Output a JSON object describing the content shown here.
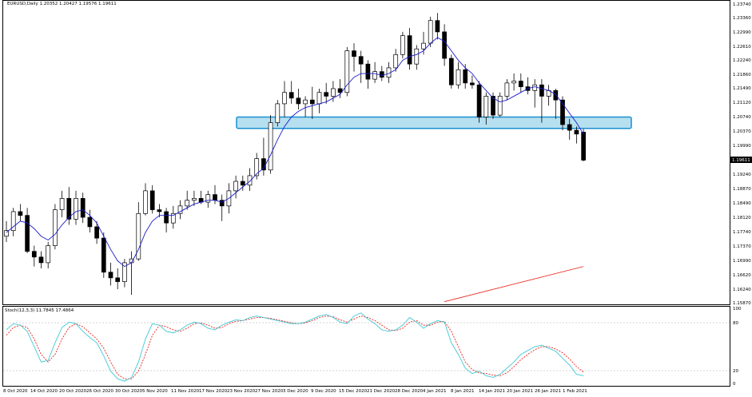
{
  "main_panel": {
    "title_text": "EURUSD,Daily  1.20352 1.20427 1.19576 1.19611",
    "price_labels": [
      "1.23740",
      "1.23360",
      "1.22990",
      "1.22610",
      "1.22240",
      "1.21860",
      "1.21490",
      "1.21120",
      "1.20740",
      "1.20370",
      "1.19990",
      "1.19611",
      "1.19240",
      "1.18870",
      "1.18490",
      "1.18120",
      "1.17740",
      "1.17370",
      "1.16990",
      "1.16620",
      "1.16240",
      "1.15870"
    ],
    "current_price": "1.19611"
  },
  "stoch_panel": {
    "title_text": "Stoch(12,3,3) 11.7845 17.4864",
    "levels": [
      "100",
      "80",
      "20",
      "0"
    ]
  },
  "time_axis": {
    "labels": [
      "8 Oct 2020",
      "14 Oct 2020",
      "20 Oct 2020",
      "26 Oct 2020",
      "30 Oct 2020",
      "5 Nov 2020",
      "11 Nov 2020",
      "17 Nov 2020",
      "23 Nov 2020",
      "27 Nov 2020",
      "3 Dec 2020",
      "9 Dec 2020",
      "15 Dec 2020",
      "21 Dec 2020",
      "28 Dec 2020",
      "4 Jan 2021",
      "8 Jan 2021",
      "14 Jan 2021",
      "20 Jan 2021",
      "26 Jan 2021",
      "1 Feb 2021"
    ]
  },
  "colors": {
    "zone_fill": "#a9d9ec",
    "zone_stroke": "#1a8fd0",
    "ma_line": "#1c1ccc",
    "trend_line": "#e8261e",
    "stoch_main": "#3fc9d6",
    "stoch_signal": "#e8261e",
    "bull_fill": "#ffffff",
    "bear_fill": "#000000"
  },
  "chart_data": {
    "type": "candlestick",
    "candles": [
      {
        "o": 1.176,
        "h": 1.18,
        "l": 1.1745,
        "c": 1.1775
      },
      {
        "o": 1.1775,
        "h": 1.1835,
        "l": 1.176,
        "c": 1.1825
      },
      {
        "o": 1.1825,
        "h": 1.1845,
        "l": 1.18,
        "c": 1.1815
      },
      {
        "o": 1.1815,
        "h": 1.1835,
        "l": 1.1715,
        "c": 1.172
      },
      {
        "o": 1.172,
        "h": 1.1735,
        "l": 1.168,
        "c": 1.1705
      },
      {
        "o": 1.1705,
        "h": 1.172,
        "l": 1.1675,
        "c": 1.169
      },
      {
        "o": 1.169,
        "h": 1.1745,
        "l": 1.1675,
        "c": 1.1735
      },
      {
        "o": 1.1735,
        "h": 1.1845,
        "l": 1.1725,
        "c": 1.183
      },
      {
        "o": 1.183,
        "h": 1.188,
        "l": 1.181,
        "c": 1.186
      },
      {
        "o": 1.186,
        "h": 1.189,
        "l": 1.179,
        "c": 1.1805
      },
      {
        "o": 1.1805,
        "h": 1.188,
        "l": 1.179,
        "c": 1.186
      },
      {
        "o": 1.186,
        "h": 1.1875,
        "l": 1.1795,
        "c": 1.181
      },
      {
        "o": 1.181,
        "h": 1.183,
        "l": 1.177,
        "c": 1.1785
      },
      {
        "o": 1.1785,
        "h": 1.18,
        "l": 1.174,
        "c": 1.1755
      },
      {
        "o": 1.1755,
        "h": 1.177,
        "l": 1.165,
        "c": 1.1665
      },
      {
        "o": 1.1665,
        "h": 1.169,
        "l": 1.163,
        "c": 1.165
      },
      {
        "o": 1.165,
        "h": 1.1675,
        "l": 1.162,
        "c": 1.164
      },
      {
        "o": 1.164,
        "h": 1.17,
        "l": 1.1625,
        "c": 1.169
      },
      {
        "o": 1.169,
        "h": 1.172,
        "l": 1.1605,
        "c": 1.17
      },
      {
        "o": 1.17,
        "h": 1.185,
        "l": 1.1695,
        "c": 1.182
      },
      {
        "o": 1.182,
        "h": 1.19,
        "l": 1.1815,
        "c": 1.188
      },
      {
        "o": 1.188,
        "h": 1.1895,
        "l": 1.182,
        "c": 1.183
      },
      {
        "o": 1.183,
        "h": 1.1845,
        "l": 1.181,
        "c": 1.1825
      },
      {
        "o": 1.1825,
        "h": 1.1835,
        "l": 1.177,
        "c": 1.1795
      },
      {
        "o": 1.1795,
        "h": 1.184,
        "l": 1.178,
        "c": 1.182
      },
      {
        "o": 1.182,
        "h": 1.1855,
        "l": 1.1805,
        "c": 1.184
      },
      {
        "o": 1.184,
        "h": 1.188,
        "l": 1.183,
        "c": 1.1855
      },
      {
        "o": 1.1855,
        "h": 1.188,
        "l": 1.184,
        "c": 1.186
      },
      {
        "o": 1.186,
        "h": 1.188,
        "l": 1.1845,
        "c": 1.185
      },
      {
        "o": 1.185,
        "h": 1.188,
        "l": 1.1835,
        "c": 1.187
      },
      {
        "o": 1.187,
        "h": 1.1895,
        "l": 1.1845,
        "c": 1.1855
      },
      {
        "o": 1.1855,
        "h": 1.187,
        "l": 1.18,
        "c": 1.184
      },
      {
        "o": 1.184,
        "h": 1.19,
        "l": 1.182,
        "c": 1.188
      },
      {
        "o": 1.188,
        "h": 1.192,
        "l": 1.186,
        "c": 1.1905
      },
      {
        "o": 1.1905,
        "h": 1.192,
        "l": 1.188,
        "c": 1.1895
      },
      {
        "o": 1.1895,
        "h": 1.194,
        "l": 1.188,
        "c": 1.192
      },
      {
        "o": 1.192,
        "h": 1.198,
        "l": 1.191,
        "c": 1.1965
      },
      {
        "o": 1.1965,
        "h": 1.202,
        "l": 1.192,
        "c": 1.1935
      },
      {
        "o": 1.1935,
        "h": 1.208,
        "l": 1.1925,
        "c": 1.206
      },
      {
        "o": 1.206,
        "h": 1.212,
        "l": 1.205,
        "c": 1.211
      },
      {
        "o": 1.211,
        "h": 1.217,
        "l": 1.2075,
        "c": 1.214
      },
      {
        "o": 1.214,
        "h": 1.217,
        "l": 1.211,
        "c": 1.2125
      },
      {
        "o": 1.2125,
        "h": 1.215,
        "l": 1.2095,
        "c": 1.211
      },
      {
        "o": 1.211,
        "h": 1.213,
        "l": 1.2075,
        "c": 1.212
      },
      {
        "o": 1.212,
        "h": 1.2155,
        "l": 1.207,
        "c": 1.211
      },
      {
        "o": 1.211,
        "h": 1.215,
        "l": 1.2085,
        "c": 1.214
      },
      {
        "o": 1.214,
        "h": 1.2165,
        "l": 1.211,
        "c": 1.213
      },
      {
        "o": 1.213,
        "h": 1.217,
        "l": 1.2115,
        "c": 1.215
      },
      {
        "o": 1.215,
        "h": 1.2175,
        "l": 1.2125,
        "c": 1.214
      },
      {
        "o": 1.214,
        "h": 1.226,
        "l": 1.213,
        "c": 1.225
      },
      {
        "o": 1.225,
        "h": 1.227,
        "l": 1.2195,
        "c": 1.2235
      },
      {
        "o": 1.2235,
        "h": 1.225,
        "l": 1.2165,
        "c": 1.2215
      },
      {
        "o": 1.2215,
        "h": 1.2225,
        "l": 1.215,
        "c": 1.2175
      },
      {
        "o": 1.2175,
        "h": 1.222,
        "l": 1.2165,
        "c": 1.2195
      },
      {
        "o": 1.2195,
        "h": 1.221,
        "l": 1.217,
        "c": 1.218
      },
      {
        "o": 1.218,
        "h": 1.222,
        "l": 1.2165,
        "c": 1.2205
      },
      {
        "o": 1.2205,
        "h": 1.2255,
        "l": 1.2195,
        "c": 1.224
      },
      {
        "o": 1.224,
        "h": 1.23,
        "l": 1.223,
        "c": 1.229
      },
      {
        "o": 1.229,
        "h": 1.231,
        "l": 1.22,
        "c": 1.2215
      },
      {
        "o": 1.2215,
        "h": 1.2265,
        "l": 1.22,
        "c": 1.2255
      },
      {
        "o": 1.2255,
        "h": 1.23,
        "l": 1.224,
        "c": 1.227
      },
      {
        "o": 1.227,
        "h": 1.234,
        "l": 1.226,
        "c": 1.233
      },
      {
        "o": 1.233,
        "h": 1.235,
        "l": 1.228,
        "c": 1.23
      },
      {
        "o": 1.23,
        "h": 1.232,
        "l": 1.221,
        "c": 1.223
      },
      {
        "o": 1.223,
        "h": 1.224,
        "l": 1.215,
        "c": 1.216
      },
      {
        "o": 1.216,
        "h": 1.222,
        "l": 1.215,
        "c": 1.22
      },
      {
        "o": 1.22,
        "h": 1.2215,
        "l": 1.215,
        "c": 1.2165
      },
      {
        "o": 1.2165,
        "h": 1.2185,
        "l": 1.215,
        "c": 1.216
      },
      {
        "o": 1.216,
        "h": 1.217,
        "l": 1.206,
        "c": 1.2075
      },
      {
        "o": 1.2075,
        "h": 1.214,
        "l": 1.2055,
        "c": 1.213
      },
      {
        "o": 1.213,
        "h": 1.214,
        "l": 1.207,
        "c": 1.208
      },
      {
        "o": 1.208,
        "h": 1.214,
        "l": 1.2075,
        "c": 1.213
      },
      {
        "o": 1.213,
        "h": 1.2175,
        "l": 1.212,
        "c": 1.2165
      },
      {
        "o": 1.2165,
        "h": 1.219,
        "l": 1.2145,
        "c": 1.217
      },
      {
        "o": 1.217,
        "h": 1.219,
        "l": 1.214,
        "c": 1.2155
      },
      {
        "o": 1.2155,
        "h": 1.218,
        "l": 1.2135,
        "c": 1.2145
      },
      {
        "o": 1.2145,
        "h": 1.2175,
        "l": 1.21,
        "c": 1.216
      },
      {
        "o": 1.216,
        "h": 1.2175,
        "l": 1.206,
        "c": 1.213
      },
      {
        "o": 1.213,
        "h": 1.216,
        "l": 1.2105,
        "c": 1.2145
      },
      {
        "o": 1.2145,
        "h": 1.215,
        "l": 1.207,
        "c": 1.212
      },
      {
        "o": 1.212,
        "h": 1.213,
        "l": 1.204,
        "c": 1.2055
      },
      {
        "o": 1.2055,
        "h": 1.207,
        "l": 1.2015,
        "c": 1.204
      },
      {
        "o": 1.204,
        "h": 1.205,
        "l": 1.2005,
        "c": 1.203
      },
      {
        "o": 1.2035,
        "h": 1.2043,
        "l": 1.1958,
        "c": 1.1961
      }
    ],
    "moving_average": [
      1.177,
      1.1785,
      1.18,
      1.1795,
      1.178,
      1.176,
      1.175,
      1.1765,
      1.179,
      1.181,
      1.1825,
      1.183,
      1.1815,
      1.1795,
      1.176,
      1.1725,
      1.1695,
      1.168,
      1.169,
      1.1725,
      1.177,
      1.18,
      1.1815,
      1.1815,
      1.1815,
      1.1825,
      1.1835,
      1.1845,
      1.185,
      1.1855,
      1.1855,
      1.185,
      1.186,
      1.1875,
      1.189,
      1.1905,
      1.1925,
      1.194,
      1.1975,
      1.2015,
      1.205,
      1.2075,
      1.209,
      1.21,
      1.2105,
      1.211,
      1.2115,
      1.2125,
      1.2135,
      1.216,
      1.218,
      1.219,
      1.219,
      1.219,
      1.2185,
      1.219,
      1.22,
      1.2225,
      1.2235,
      1.224,
      1.225,
      1.227,
      1.2285,
      1.2275,
      1.225,
      1.2225,
      1.2205,
      1.219,
      1.2165,
      1.2145,
      1.2125,
      1.2115,
      1.212,
      1.213,
      1.214,
      1.215,
      1.2155,
      1.215,
      1.2145,
      1.2135,
      1.211,
      1.2085,
      1.206,
      1.203
    ],
    "stoch_main": [
      72,
      80,
      78,
      70,
      50,
      30,
      32,
      55,
      75,
      82,
      80,
      70,
      62,
      55,
      38,
      18,
      8,
      5,
      10,
      30,
      60,
      80,
      78,
      70,
      68,
      72,
      78,
      82,
      80,
      74,
      72,
      78,
      82,
      85,
      84,
      88,
      90,
      88,
      86,
      84,
      82,
      80,
      80,
      82,
      86,
      90,
      92,
      88,
      82,
      80,
      90,
      94,
      86,
      80,
      72,
      70,
      72,
      78,
      88,
      82,
      74,
      80,
      84,
      82,
      55,
      40,
      22,
      15,
      18,
      12,
      10,
      14,
      22,
      30,
      40,
      45,
      50,
      52,
      48,
      44,
      35,
      26,
      14,
      12
    ],
    "stoch_signal": [
      65,
      75,
      78,
      75,
      60,
      40,
      30,
      40,
      60,
      75,
      80,
      76,
      68,
      60,
      48,
      30,
      14,
      8,
      8,
      18,
      40,
      65,
      78,
      76,
      72,
      70,
      74,
      80,
      81,
      78,
      74,
      75,
      80,
      83,
      84,
      86,
      88,
      88,
      87,
      85,
      83,
      81,
      80,
      81,
      84,
      88,
      90,
      89,
      85,
      82,
      86,
      90,
      88,
      84,
      78,
      72,
      71,
      74,
      82,
      84,
      78,
      78,
      82,
      83,
      70,
      50,
      30,
      20,
      16,
      15,
      13,
      12,
      16,
      24,
      33,
      40,
      46,
      50,
      50,
      47,
      42,
      34,
      24,
      17
    ],
    "resistance_zone": {
      "top": 1.2075,
      "bottom": 1.2045
    },
    "trend_line": {
      "from_index": 63,
      "from_price": 1.1587,
      "to_index": 83,
      "to_price": 1.168
    },
    "y_range": [
      1.158,
      1.238
    ],
    "stoch_range": [
      0,
      100
    ]
  }
}
